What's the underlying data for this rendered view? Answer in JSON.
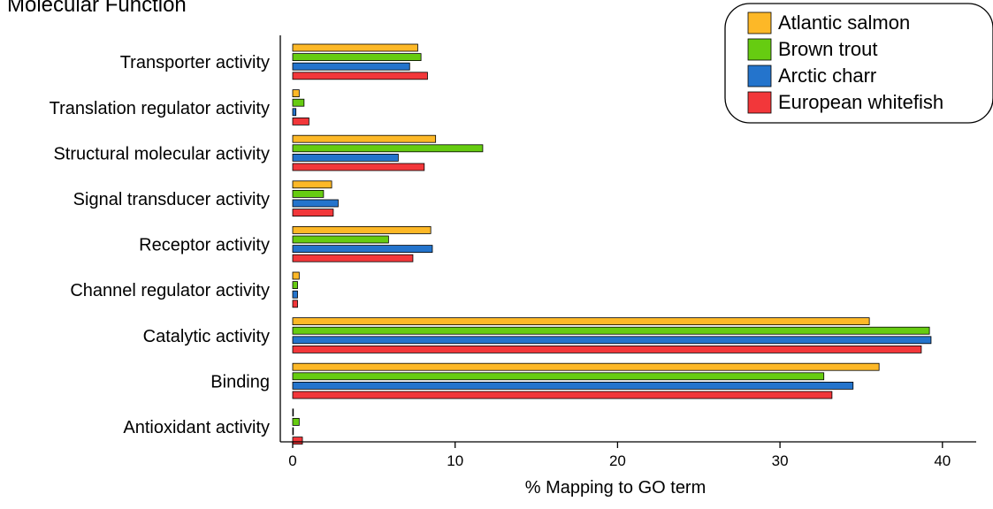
{
  "chart_data": {
    "type": "bar",
    "orientation": "horizontal",
    "title": "Molecular Function",
    "xlabel": "% Mapping to GO term",
    "ylabel": "",
    "xlim": [
      0,
      42
    ],
    "xticks": [
      0,
      10,
      20,
      30,
      40
    ],
    "grid": false,
    "legend_position": "top-right",
    "categories": [
      "Transporter activity",
      "Translation regulator activity",
      "Structural molecular activity",
      "Signal transducer activity",
      "Receptor activity",
      "Channel regulator activity",
      "Catalytic activity",
      "Binding",
      "Antioxidant activity"
    ],
    "series": [
      {
        "name": "Atlantic salmon",
        "color": "#FDB827",
        "values": [
          7.7,
          0.4,
          8.8,
          2.4,
          8.5,
          0.4,
          35.5,
          36.1,
          0.0
        ]
      },
      {
        "name": "Brown trout",
        "color": "#66CC11",
        "values": [
          7.9,
          0.7,
          11.7,
          1.9,
          5.9,
          0.3,
          39.2,
          32.7,
          0.4
        ]
      },
      {
        "name": "Arctic charr",
        "color": "#2474CC",
        "values": [
          7.2,
          0.2,
          6.5,
          2.8,
          8.6,
          0.3,
          39.3,
          34.5,
          0.0
        ]
      },
      {
        "name": "European whitefish",
        "color": "#F2373A",
        "values": [
          8.3,
          1.0,
          8.1,
          2.5,
          7.4,
          0.3,
          38.7,
          33.2,
          0.6
        ]
      }
    ]
  }
}
